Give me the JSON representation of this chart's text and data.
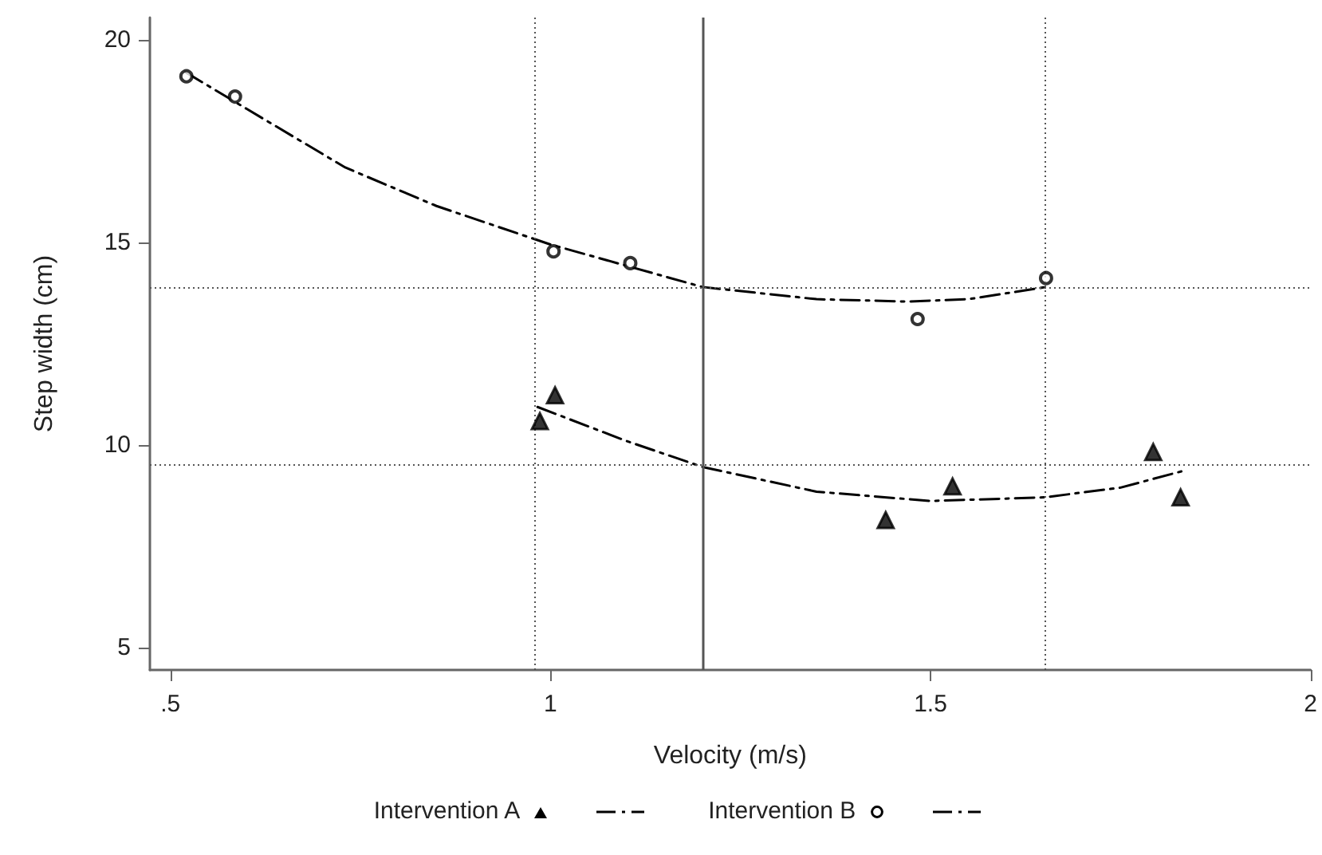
{
  "chart_data": {
    "type": "scatter",
    "xlabel": "Velocity (m/s)",
    "ylabel": "Step width (cm)",
    "xlim": [
      0.473,
      2
    ],
    "xticks": [
      {
        "value": 0.5,
        "label": ".5"
      },
      1,
      1.5,
      2
    ],
    "ylim": [
      4.45,
      20.55
    ],
    "yticks": [
      5,
      10,
      15,
      20
    ],
    "grid": false,
    "legend": "bottom",
    "series": [
      {
        "name": "Intervention A",
        "marker": "triangle",
        "color": "#000000",
        "x": [
          0.986,
          1.006,
          1.441,
          1.529,
          1.793,
          1.829
        ],
        "values": [
          10.59,
          11.23,
          8.15,
          8.98,
          9.83,
          8.71
        ]
      },
      {
        "type": "line",
        "marker": "none",
        "line_style": "dashed",
        "color": "#000000",
        "x": [
          0.983,
          1.1,
          1.2,
          1.35,
          1.5,
          1.65,
          1.75,
          1.83
        ],
        "values": [
          10.94,
          10.1,
          9.46,
          8.85,
          8.62,
          8.71,
          8.95,
          9.35
        ]
      },
      {
        "name": "Intervention B",
        "marker": "circle",
        "color": "#000000",
        "x": [
          0.521,
          0.585,
          1.004,
          1.105,
          1.483,
          1.652
        ],
        "values": [
          19.1,
          18.6,
          14.78,
          14.49,
          13.11,
          14.12
        ]
      },
      {
        "type": "line",
        "marker": "none",
        "line_style": "dashed",
        "color": "#000000",
        "x": [
          0.52,
          0.6,
          0.73,
          0.85,
          1.0,
          1.2,
          1.35,
          1.47,
          1.55,
          1.652
        ],
        "values": [
          19.2,
          18.3,
          16.85,
          15.9,
          14.95,
          13.9,
          13.6,
          13.54,
          13.6,
          13.9
        ]
      }
    ],
    "ref_lines": [
      {
        "axis": "x",
        "value": 0.984,
        "line_style": "dotted",
        "color": "#555555"
      },
      {
        "axis": "x",
        "value": 1.2,
        "line_style": "solid",
        "color": "#555555"
      },
      {
        "axis": "x",
        "value": 1.652,
        "line_style": "dotted",
        "color": "#555555"
      },
      {
        "axis": "y",
        "value": 13.9,
        "line_style": "dotted",
        "color": "#555555"
      },
      {
        "axis": "y",
        "value": 9.5,
        "line_style": "dotted",
        "color": "#555555"
      }
    ]
  }
}
